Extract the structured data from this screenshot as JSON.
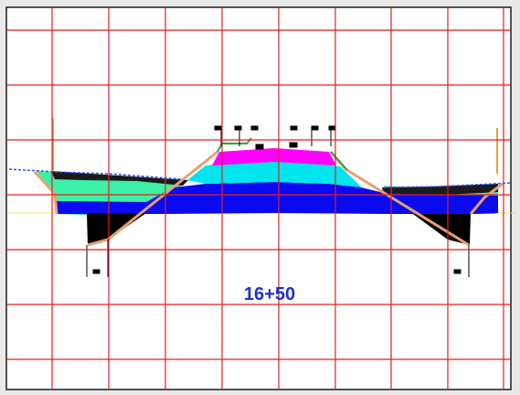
{
  "section": {
    "station_label": "16+50"
  },
  "colors": {
    "grid": "#e02020",
    "frame": "#1a1a1a",
    "canvas_bg": "#ffffff",
    "pavement_top": "#ff00ff",
    "base_layer": "#00e5ee",
    "subbase_layer": "#0a0af0",
    "fill_embankment": "#3cf0a8",
    "ditch_black": "#000000",
    "slope_line": "#2fa050",
    "ground_line": "#3050ff",
    "label_blue": "#1f2fd0",
    "tick_orange": "#e8a040"
  }
}
